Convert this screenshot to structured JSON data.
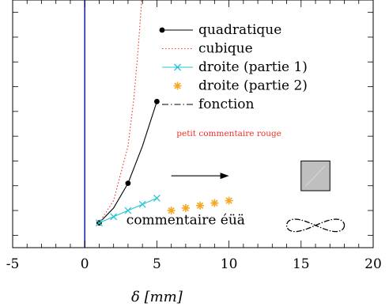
{
  "chart_data": {
    "type": "line",
    "xlim": [
      -5,
      20
    ],
    "ylim": [
      0,
      1
    ],
    "x_ticks": [
      -5,
      0,
      5,
      10,
      15,
      20
    ],
    "x_tick_labels": [
      "-5",
      "0",
      "5",
      "10",
      "15",
      "20"
    ],
    "x_minor_step": 1,
    "y_ticks": [
      0.05,
      0.15,
      0.25,
      0.35,
      0.45,
      0.55,
      0.65,
      0.75,
      0.85,
      0.95
    ],
    "xlabel": "δ [mm]",
    "grid": false,
    "legend_position": "top-right",
    "vertical_line": {
      "x": 0,
      "color": "#1f2db5"
    },
    "series": [
      {
        "name": "quadratique",
        "style": "solid",
        "color": "#000000",
        "marker": "dot",
        "points": [
          [
            1,
            0.1
          ],
          [
            2,
            0.16
          ],
          [
            3,
            0.26
          ],
          [
            4,
            0.41
          ],
          [
            5,
            0.59
          ]
        ],
        "marked_indices": [
          0,
          2,
          4
        ]
      },
      {
        "name": "cubique",
        "style": "dotted",
        "color": "#e8322a",
        "marker": "none",
        "points": [
          [
            1,
            0.1
          ],
          [
            2,
            0.19
          ],
          [
            3,
            0.41
          ],
          [
            3.4,
            0.6
          ],
          [
            3.7,
            0.8
          ],
          [
            3.95,
            1.0
          ]
        ]
      },
      {
        "name": "droite (partie 1)",
        "style": "solid",
        "color": "#29c4d2",
        "marker": "cross",
        "points": [
          [
            1,
            0.1
          ],
          [
            2,
            0.125
          ],
          [
            3,
            0.15
          ],
          [
            4,
            0.175
          ],
          [
            5,
            0.2
          ]
        ]
      },
      {
        "name": "droite (partie 2)",
        "style": "none",
        "color": "#f5a623",
        "marker": "asterisk",
        "points": [
          [
            6,
            0.15
          ],
          [
            7,
            0.16
          ],
          [
            8,
            0.17
          ],
          [
            9,
            0.18
          ],
          [
            10,
            0.19
          ]
        ]
      },
      {
        "name": "fonction",
        "style": "dashdot",
        "color": "#000000",
        "marker": "none",
        "points": []
      }
    ],
    "annotations": [
      {
        "id": "red-comment",
        "text": "petit commentaire rouge",
        "x": 10,
        "y": 0.45,
        "color": "#e8322a",
        "size": "small"
      },
      {
        "id": "comment",
        "text": "commentaire éüä",
        "x": 7,
        "y": 0.095,
        "color": "#000000",
        "size": "normal"
      },
      {
        "id": "arrow",
        "from": [
          6,
          0.29
        ],
        "to": [
          10,
          0.29
        ]
      },
      {
        "id": "gray-square",
        "x0": 15,
        "x1": 17,
        "y0": 0.23,
        "y1": 0.35,
        "fill": "#bfbfbf"
      },
      {
        "id": "infinity-curve",
        "cx": 16,
        "cy": 0.09,
        "x_half_width": 2,
        "y_half_height": 0.025
      }
    ]
  }
}
